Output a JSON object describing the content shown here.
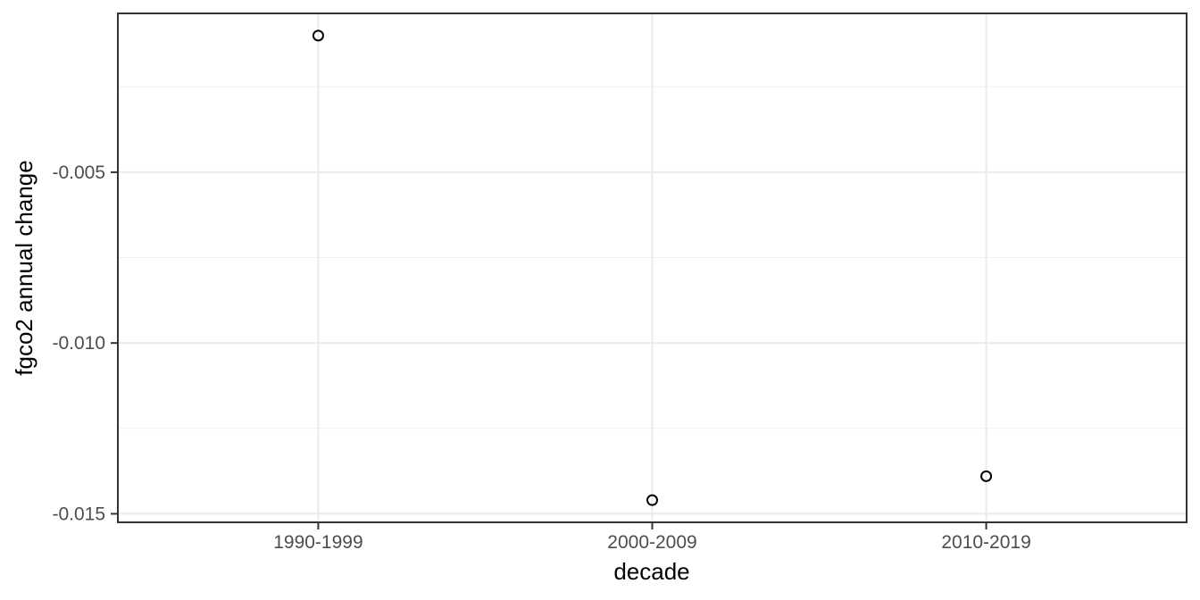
{
  "figure": {
    "background": "#ffffff"
  },
  "chart_data": {
    "type": "scatter",
    "title": "",
    "categories": [
      "1990-1999",
      "2000-2009",
      "2010-2019"
    ],
    "values": [
      -0.001,
      -0.0146,
      -0.0139
    ],
    "xlabel": "decade",
    "ylabel": "fgco2 annual change",
    "ylim": [
      -0.01525,
      -0.00035
    ],
    "y_major_ticks": [
      -0.005,
      -0.01,
      -0.015
    ],
    "y_tick_labels": [
      "-0.005",
      "-0.010",
      "-0.015"
    ],
    "y_minor_ticks": [
      -0.0025,
      -0.0075,
      -0.0125
    ],
    "grid": "on",
    "legend": "none",
    "marker": "open-circle",
    "style": {
      "panel_background": "#ffffff",
      "panel_border_color": "#333333",
      "grid_major_color": "#ebebeb",
      "grid_minor_color": "#efefef",
      "tick_color": "#333333",
      "tick_label_color": "#4d4d4d",
      "axis_title_color": "#000000",
      "point_color": "#000000"
    }
  }
}
